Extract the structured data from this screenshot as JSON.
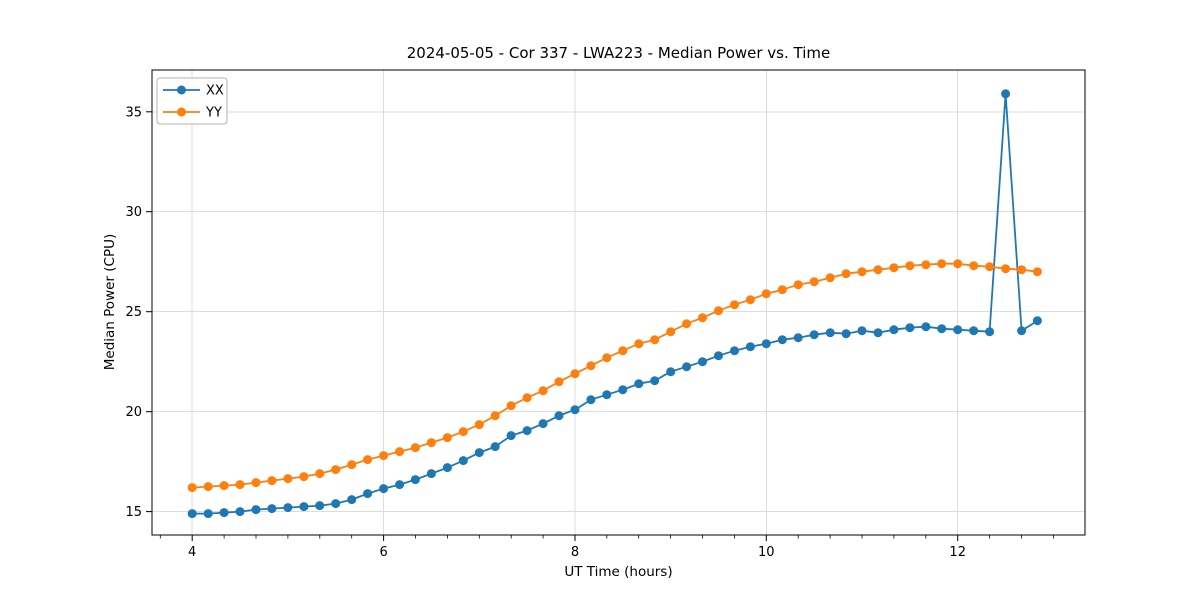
{
  "chart_data": {
    "type": "line",
    "title": "2024-05-05 - Cor 337 - LWA223 - Median Power vs. Time",
    "xlabel": "UT Time (hours)",
    "ylabel": "Median Power (CPU)",
    "xlim": [
      3.58,
      13.33
    ],
    "ylim": [
      13.83,
      37.09
    ],
    "grid": true,
    "legend_position": "upper left",
    "xticks": {
      "values": [
        4,
        6,
        8,
        10,
        12
      ],
      "labels": [
        "4",
        "6",
        "8",
        "10",
        "12"
      ]
    },
    "yticks": {
      "values": [
        15,
        20,
        25,
        30,
        35
      ],
      "labels": [
        "15",
        "20",
        "25",
        "30",
        "35"
      ]
    },
    "x_minor_interval": 0.33333,
    "grid_color": "#dcdcdc",
    "spine_color": "#000000",
    "x": [
      4.0,
      4.167,
      4.333,
      4.5,
      4.667,
      4.833,
      5.0,
      5.167,
      5.333,
      5.5,
      5.667,
      5.833,
      6.0,
      6.167,
      6.333,
      6.5,
      6.667,
      6.833,
      7.0,
      7.167,
      7.333,
      7.5,
      7.667,
      7.833,
      8.0,
      8.167,
      8.333,
      8.5,
      8.667,
      8.833,
      9.0,
      9.167,
      9.333,
      9.5,
      9.667,
      9.833,
      10.0,
      10.167,
      10.333,
      10.5,
      10.667,
      10.833,
      11.0,
      11.167,
      11.333,
      11.5,
      11.667,
      11.833,
      12.0,
      12.167,
      12.333,
      12.5,
      12.667,
      12.833
    ],
    "series": [
      {
        "name": "XX",
        "color": "#1f77b4",
        "values": [
          14.9,
          14.9,
          14.95,
          15.0,
          15.1,
          15.15,
          15.2,
          15.25,
          15.3,
          15.4,
          15.6,
          15.9,
          16.15,
          16.35,
          16.6,
          16.9,
          17.2,
          17.55,
          17.95,
          18.25,
          18.8,
          19.05,
          19.4,
          19.8,
          20.1,
          20.6,
          20.85,
          21.1,
          21.4,
          21.55,
          22.0,
          22.25,
          22.5,
          22.8,
          23.05,
          23.25,
          23.4,
          23.6,
          23.7,
          23.85,
          23.95,
          23.9,
          24.05,
          23.95,
          24.1,
          24.2,
          24.25,
          24.15,
          24.1,
          24.05,
          24.0,
          35.9,
          24.05,
          24.55
        ]
      },
      {
        "name": "YY",
        "color": "#ff7f0e",
        "values": [
          16.2,
          16.25,
          16.3,
          16.35,
          16.45,
          16.55,
          16.65,
          16.75,
          16.9,
          17.1,
          17.35,
          17.6,
          17.8,
          18.0,
          18.2,
          18.45,
          18.7,
          19.0,
          19.35,
          19.8,
          20.3,
          20.7,
          21.05,
          21.5,
          21.9,
          22.3,
          22.7,
          23.05,
          23.4,
          23.6,
          24.0,
          24.4,
          24.7,
          25.05,
          25.35,
          25.6,
          25.9,
          26.1,
          26.35,
          26.5,
          26.7,
          26.9,
          27.0,
          27.1,
          27.2,
          27.3,
          27.35,
          27.4,
          27.4,
          27.3,
          27.25,
          27.15,
          27.1,
          27.0
        ]
      }
    ]
  }
}
